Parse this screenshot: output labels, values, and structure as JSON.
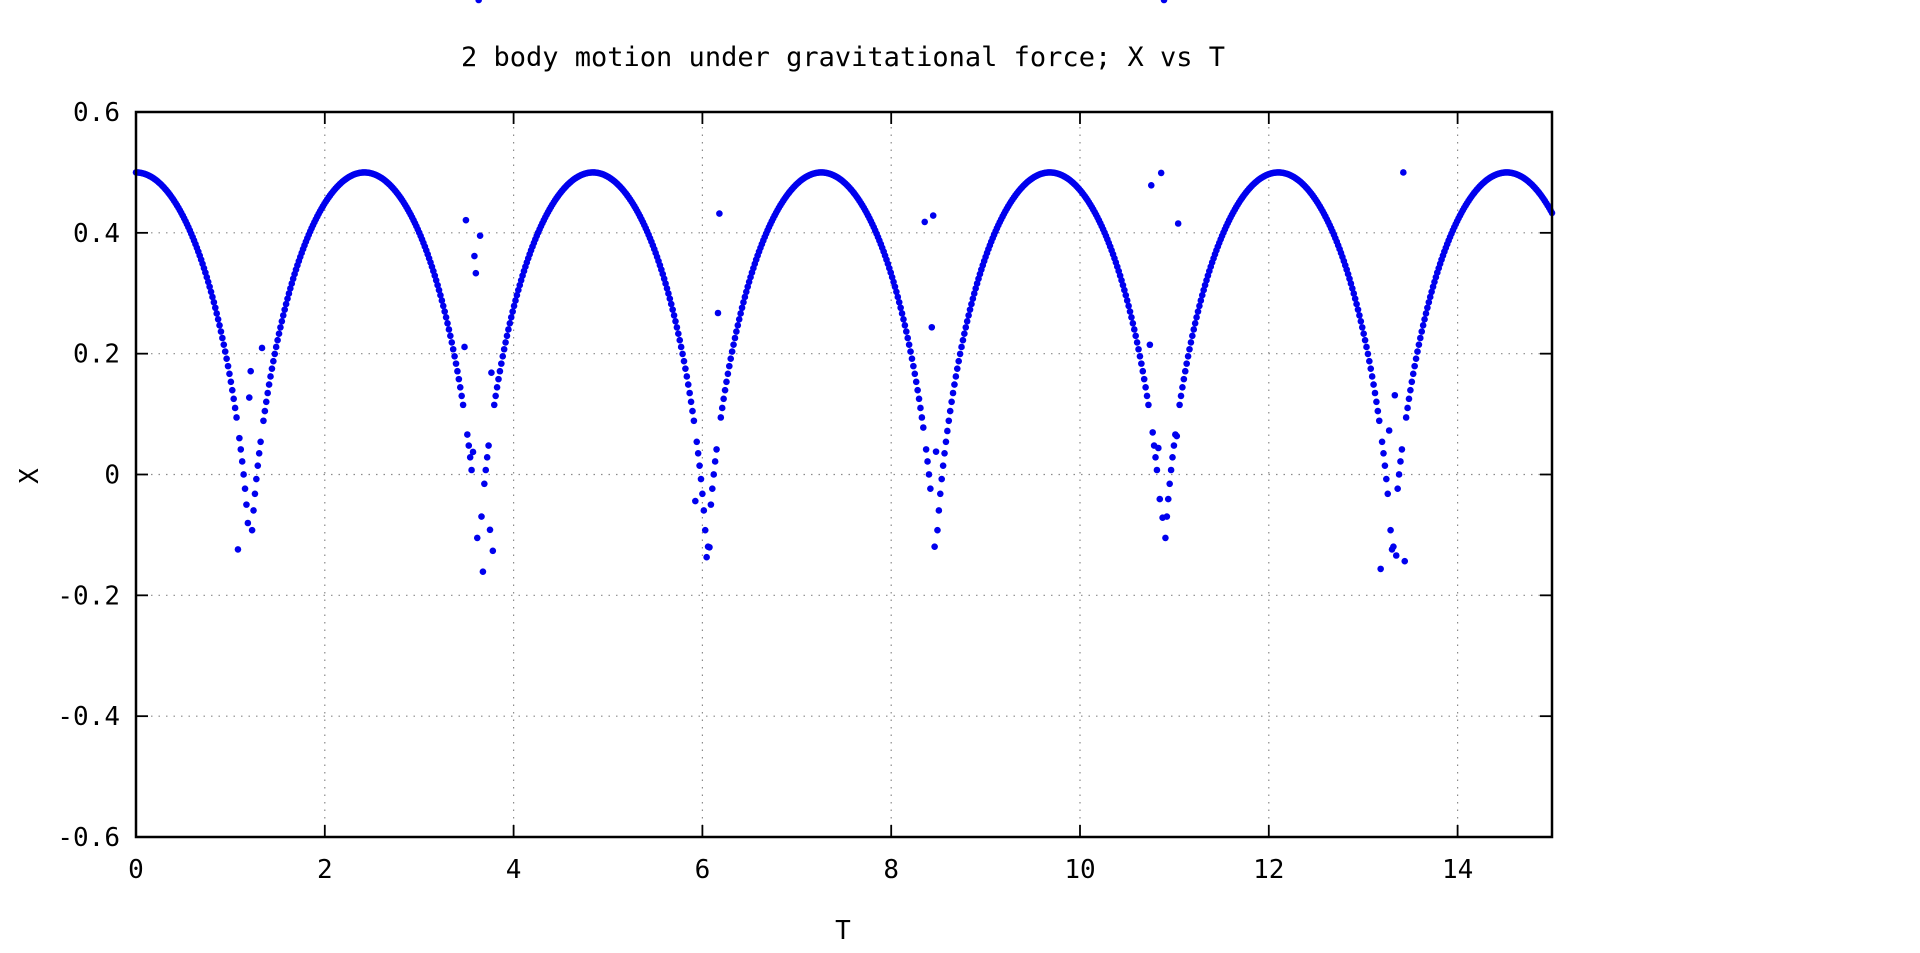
{
  "chart_data": {
    "type": "scatter",
    "title": "2 body motion under gravitational force; X vs T",
    "xlabel": "T",
    "ylabel": "X",
    "xlim": [
      0,
      15
    ],
    "ylim": [
      -0.6,
      0.6
    ],
    "xticks": [
      0,
      2,
      4,
      6,
      8,
      10,
      12,
      14
    ],
    "xtick_labels": [
      "0",
      "2",
      "4",
      "6",
      "8",
      "10",
      "12",
      "14"
    ],
    "yticks": [
      -0.6,
      -0.4,
      -0.2,
      0,
      0.2,
      0.4,
      0.6
    ],
    "ytick_labels": [
      "-0.6",
      "-0.4",
      "-0.2",
      "0",
      "0.2",
      "0.4",
      "0.6"
    ],
    "grid": true,
    "legend": "none",
    "series": [
      {
        "color": "#0000ee",
        "sampling": {
          "t_start": 0,
          "t_end": 15,
          "dt": 0.015
        },
        "orbit": {
          "x_max": 0.5,
          "x_min": -0.167,
          "period": 2.42,
          "first_max_t": 0,
          "first_min_t": 1.21
        },
        "maxima": [
          {
            "t": 0.0,
            "x": 0.5
          },
          {
            "t": 2.42,
            "x": 0.5
          },
          {
            "t": 4.84,
            "x": 0.5
          },
          {
            "t": 7.26,
            "x": 0.5
          },
          {
            "t": 9.68,
            "x": 0.5
          },
          {
            "t": 12.1,
            "x": 0.5
          },
          {
            "t": 14.52,
            "x": 0.5
          }
        ],
        "minima": [
          {
            "t": 1.21,
            "x": -0.167
          },
          {
            "t": 3.63,
            "x": -0.167
          },
          {
            "t": 6.05,
            "x": -0.167
          },
          {
            "t": 8.47,
            "x": -0.167
          },
          {
            "t": 10.89,
            "x": -0.167
          },
          {
            "t": 13.31,
            "x": -0.167
          }
        ],
        "end_point": {
          "t": 15,
          "x": 0.38
        }
      }
    ]
  }
}
